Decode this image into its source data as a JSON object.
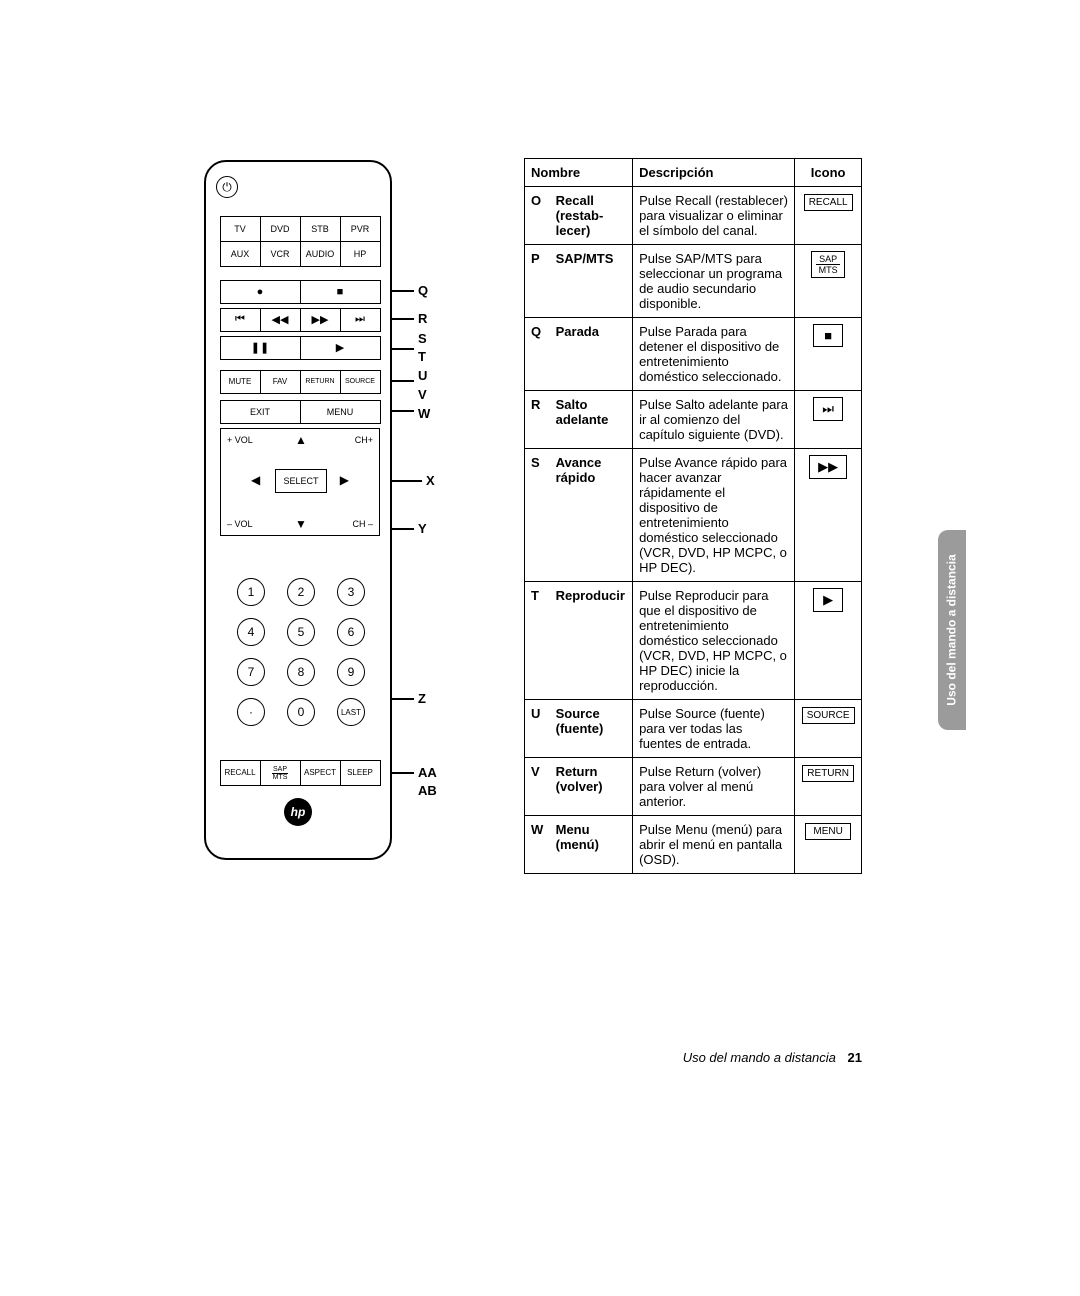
{
  "remote": {
    "source_buttons": [
      "TV",
      "DVD",
      "STB",
      "PVR",
      "AUX",
      "VCR",
      "AUDIO",
      "HP"
    ],
    "rec_stop": [
      "●",
      "■"
    ],
    "transport": [
      "⏮",
      "◀◀",
      "▶▶",
      "⏭"
    ],
    "pause_play": [
      "❚❚",
      "▶"
    ],
    "row_mfrs": [
      "MUTE",
      "FAV",
      "RETURN",
      "SOURCE"
    ],
    "exit_menu": [
      "EXIT",
      "MENU"
    ],
    "dpad": {
      "vol_plus": "+ VOL",
      "vol_minus": "– VOL",
      "ch_plus": "CH+",
      "ch_minus": "CH –",
      "select": "SELECT",
      "up": "▲",
      "down": "▼",
      "left": "◀",
      "right": "▶"
    },
    "numpad": [
      "1",
      "2",
      "3",
      "4",
      "5",
      "6",
      "7",
      "8",
      "9",
      "·",
      "0",
      "LAST"
    ],
    "bottom": {
      "recall": "RECALL",
      "sap": "SAP",
      "mts": "MTS",
      "aspect": "ASPECT",
      "sleep": "SLEEP"
    },
    "logo": "hp"
  },
  "callouts": {
    "Q": "Q",
    "R": "R",
    "S": "S",
    "T": "T",
    "U": "U",
    "V": "V",
    "W": "W",
    "X": "X",
    "Y": "Y",
    "Z": "Z",
    "AA": "AA",
    "AB": "AB"
  },
  "table": {
    "headers": {
      "name": "Nombre",
      "desc": "Descripción",
      "icon": "Icono"
    },
    "rows": [
      {
        "l": "O",
        "name": "Recall (restab-lecer)",
        "desc": "Pulse Recall (restablecer) para visualizar o eliminar el símbolo del canal.",
        "icon_type": "text",
        "icon": "RECALL"
      },
      {
        "l": "P",
        "name": "SAP/MTS",
        "desc": "Pulse SAP/MTS para seleccionar un programa de audio secundario disponible.",
        "icon_type": "sapmts"
      },
      {
        "l": "Q",
        "name": "Parada",
        "desc": "Pulse Parada para detener el dispositivo de entretenimiento doméstico seleccionado.",
        "icon_type": "sym",
        "icon": "■"
      },
      {
        "l": "R",
        "name": "Salto adelante",
        "desc": "Pulse Salto adelante para ir al comienzo del capítulo siguiente (DVD).",
        "icon_type": "sym",
        "icon": "⏭"
      },
      {
        "l": "S",
        "name": "Avance rápido",
        "desc": "Pulse Avance rápido para hacer avanzar rápidamente el dispositivo de entretenimiento doméstico seleccionado (VCR, DVD, HP MCPC, o HP DEC).",
        "icon_type": "sym",
        "icon": "▶▶"
      },
      {
        "l": "T",
        "name": "Reproducir",
        "desc": "Pulse Reproducir para que el dispositivo de entretenimiento doméstico seleccionado (VCR, DVD, HP MCPC, o HP DEC) inicie la reproducción.",
        "icon_type": "sym",
        "icon": "▶"
      },
      {
        "l": "U",
        "name": "Source (fuente)",
        "desc": "Pulse Source (fuente) para ver todas las fuentes de entrada.",
        "icon_type": "text",
        "icon": "SOURCE"
      },
      {
        "l": "V",
        "name": "Return (volver)",
        "desc": "Pulse Return (volver) para volver al menú anterior.",
        "icon_type": "text",
        "icon": "RETURN"
      },
      {
        "l": "W",
        "name": "Menu (menú)",
        "desc": "Pulse Menu (menú) para abrir el menú en pantalla (OSD).",
        "icon_type": "text",
        "icon": "MENU"
      }
    ]
  },
  "side_tab": "Uso del mando a distancia",
  "footer": {
    "section": "Uso del mando a distancia",
    "page": "21"
  }
}
